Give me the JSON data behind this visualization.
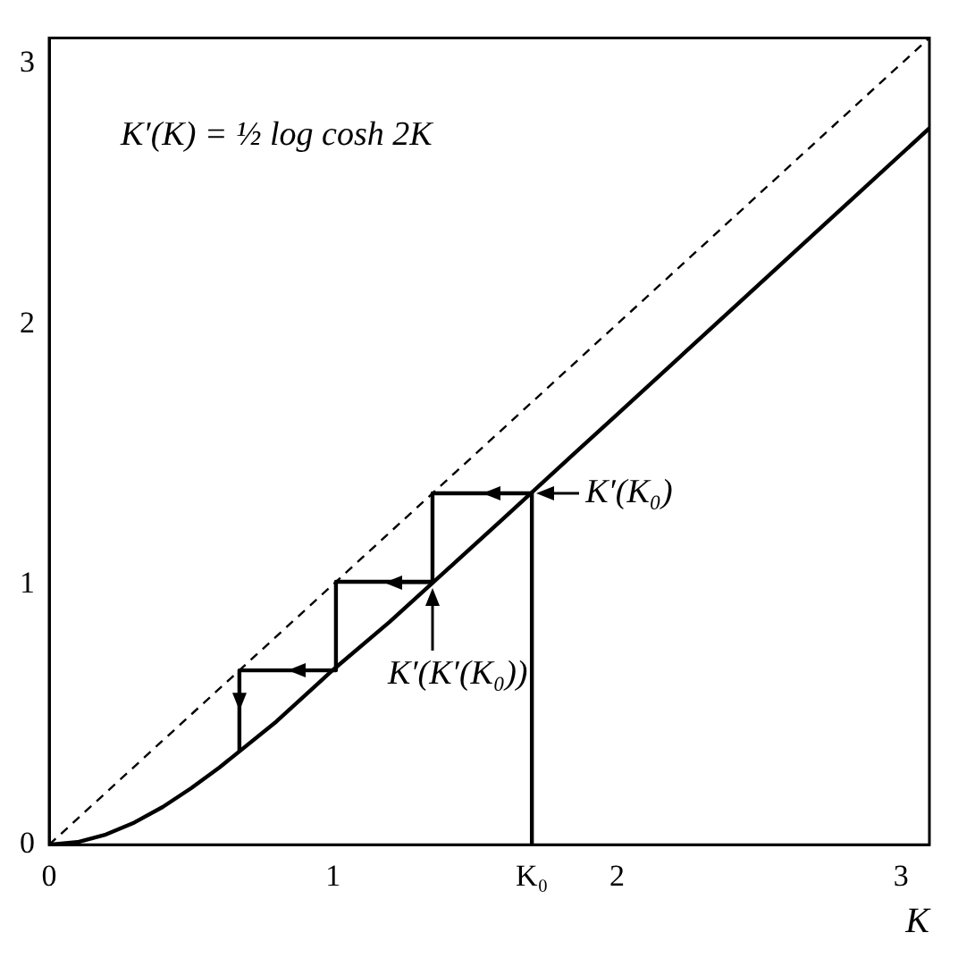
{
  "chart_data": {
    "type": "line",
    "title": "K′(K) = ½ log cosh 2K",
    "xlabel": "K",
    "xlim": [
      0,
      3.1
    ],
    "ylim": [
      0,
      3.1
    ],
    "xticks": [
      0,
      1,
      {
        "value": 1.7,
        "label": "K₀"
      },
      2,
      3
    ],
    "yticks": [
      0,
      1,
      2,
      3
    ],
    "grid": false,
    "legend": false,
    "marker": "none",
    "series": [
      {
        "color": "#000000",
        "line_style": "solid",
        "x": [
          0,
          0.1,
          0.2,
          0.3,
          0.4,
          0.5,
          0.6,
          0.8,
          1.0,
          1.2,
          1.4,
          1.6,
          1.8,
          2.0,
          2.4,
          2.8,
          3.1
        ],
        "values": [
          0,
          0.01,
          0.039,
          0.085,
          0.145,
          0.217,
          0.297,
          0.473,
          0.672,
          0.857,
          1.055,
          1.254,
          1.454,
          1.653,
          2.053,
          2.453,
          2.753
        ]
      },
      {
        "color": "#000000",
        "line_style": "dashed",
        "x": [
          0,
          3.1
        ],
        "values": [
          0,
          3.1
        ]
      },
      {
        "color": "#000000",
        "line_style": "solid",
        "x": [
          1.7,
          1.7,
          1.35,
          1.35,
          1.01,
          1.01,
          0.67,
          0.67
        ],
        "values": [
          0,
          1.35,
          1.35,
          1.01,
          1.01,
          0.67,
          0.67,
          0.36
        ]
      }
    ],
    "annotations": [
      {
        "text": "K′(K₀)",
        "x": 1.7,
        "y": 1.35
      },
      {
        "text": "K′(K′(K₀))",
        "x": 1.35,
        "y": 1.01
      }
    ]
  }
}
